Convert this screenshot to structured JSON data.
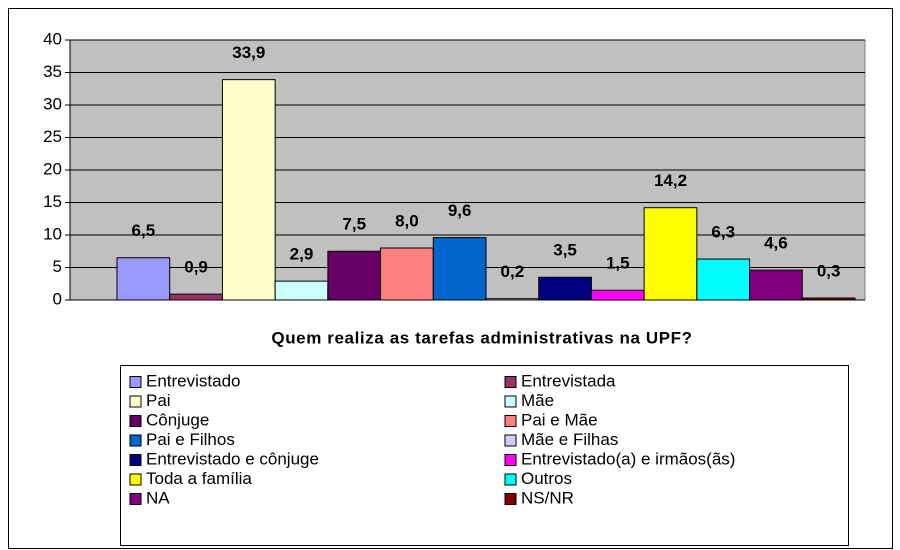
{
  "chart_data": {
    "type": "bar",
    "title": "Quem realiza as tarefas administrativas na UPF?",
    "categories": [
      null
    ],
    "series": [
      {
        "name": "Entrevistado",
        "color": "#9999ff",
        "values": [
          6.5
        ],
        "value_labels": [
          "6,5"
        ]
      },
      {
        "name": "Entrevistada",
        "color": "#993366",
        "values": [
          0.9
        ],
        "value_labels": [
          "0,9"
        ]
      },
      {
        "name": "Pai",
        "color": "#ffffcc",
        "values": [
          33.9
        ],
        "value_labels": [
          "33,9"
        ]
      },
      {
        "name": "Mãe",
        "color": "#ccffff",
        "values": [
          2.9
        ],
        "value_labels": [
          "2,9"
        ]
      },
      {
        "name": "Cônjuge",
        "color": "#660066",
        "values": [
          7.5
        ],
        "value_labels": [
          "7,5"
        ]
      },
      {
        "name": "Pai e Mãe",
        "color": "#ff8080",
        "values": [
          8.0
        ],
        "value_labels": [
          "8,0"
        ]
      },
      {
        "name": "Pai e Filhos",
        "color": "#0066cc",
        "values": [
          9.6
        ],
        "value_labels": [
          "9,6"
        ]
      },
      {
        "name": "Mãe e Filhas",
        "color": "#ccccff",
        "values": [
          0.2
        ],
        "value_labels": [
          "0,2"
        ]
      },
      {
        "name": "Entrevistado e cônjuge",
        "color": "#000080",
        "values": [
          3.5
        ],
        "value_labels": [
          "3,5"
        ]
      },
      {
        "name": "Entrevistado(a) e irmãos(ãs)",
        "color": "#ff00ff",
        "values": [
          1.5
        ],
        "value_labels": [
          "1,5"
        ]
      },
      {
        "name": "Toda a família",
        "color": "#ffff00",
        "values": [
          14.2
        ],
        "value_labels": [
          "14,2"
        ]
      },
      {
        "name": "Outros",
        "color": "#00ffff",
        "values": [
          6.3
        ],
        "value_labels": [
          "6,3"
        ]
      },
      {
        "name": "NA",
        "color": "#800080",
        "values": [
          4.6
        ],
        "value_labels": [
          "4,6"
        ]
      },
      {
        "name": "NS/NR",
        "color": "#800000",
        "values": [
          0.3
        ],
        "value_labels": [
          "0,3"
        ]
      }
    ],
    "ylim": [
      0,
      40
    ],
    "yticks": [
      0,
      5,
      10,
      15,
      20,
      25,
      30,
      35,
      40
    ],
    "grid": true,
    "legend": "bottom"
  }
}
